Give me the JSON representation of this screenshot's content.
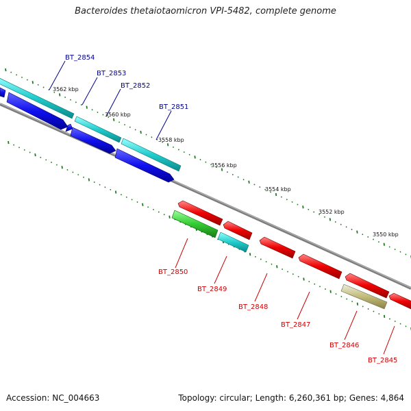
{
  "title": "Bacteroides thetaiotaomicron VPI-5482, complete genome",
  "footer": {
    "accession": "Accession: NC_004663",
    "stats": "Topology: circular; Length: 6,260,361 bp; Genes: 4,864"
  },
  "colors": {
    "backbone": "#7d7d7d",
    "tick": "#1f7a1f",
    "top_label": "#00008b",
    "bottom_label": "#cc0000"
  },
  "scale_labels": [
    "3562 kbp",
    "3560 kbp",
    "3558 kbp",
    "3556 kbp",
    "3554 kbp",
    "3552 kbp",
    "3550 kbp"
  ],
  "genes_top": [
    "BT_2854",
    "BT_2853",
    "BT_2852",
    "BT_2851"
  ],
  "genes_bottom": [
    "BT_2850",
    "BT_2849",
    "BT_2848",
    "BT_2847",
    "BT_2846",
    "BT_2845"
  ]
}
